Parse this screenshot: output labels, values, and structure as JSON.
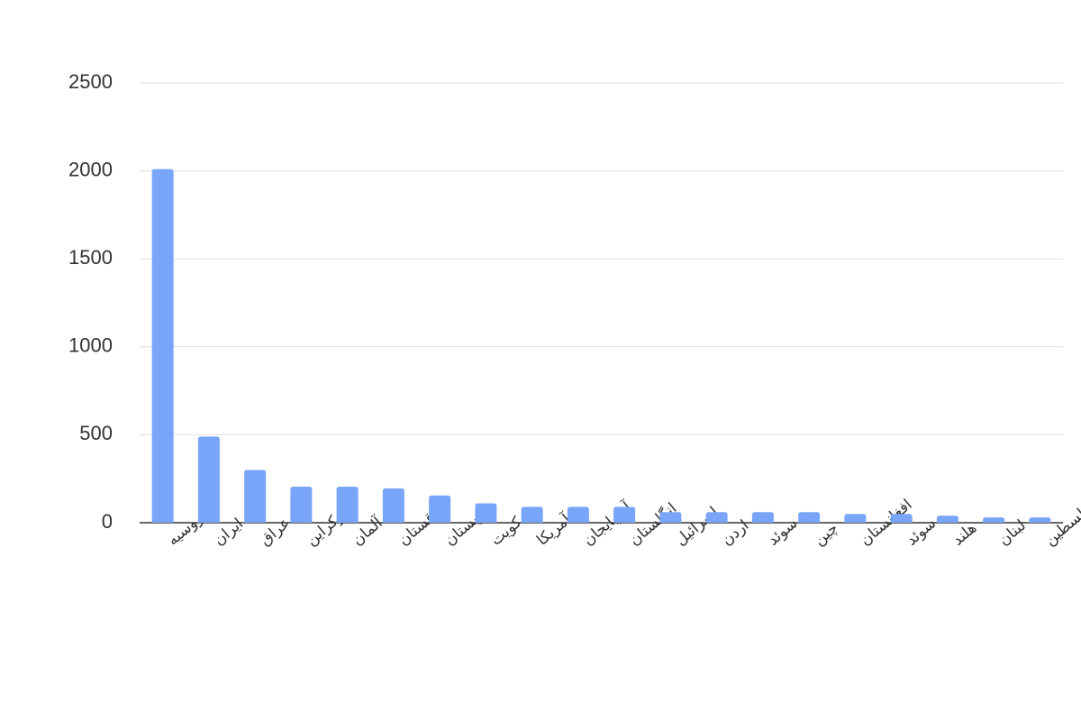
{
  "chart_data": {
    "type": "bar",
    "categories": [
      "روسیه",
      "ایران",
      "عراق",
      "اوکراین",
      "آلمان",
      "قزاقستان",
      "عربستان",
      "کویت",
      "آمریکا",
      "آذربایجان",
      "انگلستان",
      "اسرائیل",
      "اردن",
      "سوئد",
      "چین",
      "افغانستان",
      "سوئد",
      "هلند",
      "لبنان",
      "فلسطین"
    ],
    "values": [
      2010,
      490,
      300,
      205,
      205,
      195,
      155,
      110,
      90,
      90,
      90,
      60,
      60,
      60,
      60,
      50,
      50,
      40,
      30,
      30
    ],
    "color": "#78a5f8",
    "ylim": [
      0,
      2500
    ],
    "yticks": [
      0,
      500,
      1000,
      1500,
      2000,
      2500
    ],
    "grid": true
  }
}
